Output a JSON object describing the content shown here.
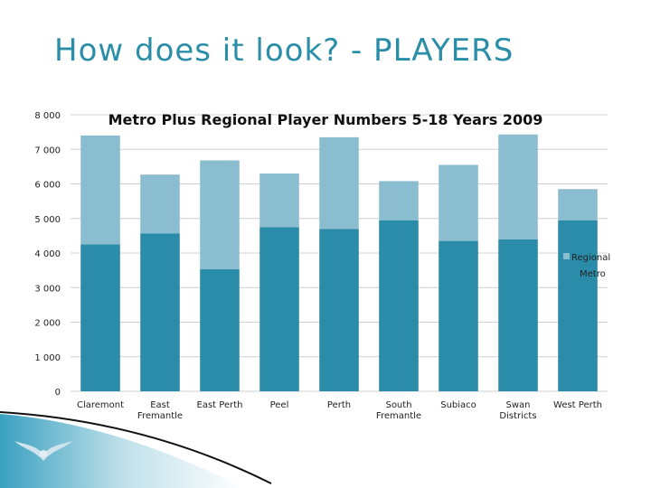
{
  "slide": {
    "title": "How does it look? - PLAYERS"
  },
  "colors": {
    "metro": "#2a8ca8",
    "regional": "#8bbdd0",
    "title": "#2b8ea8",
    "grid": "#d0d0d0"
  },
  "chart_data": {
    "type": "bar",
    "stacked": true,
    "title": "Metro Plus Regional Player Numbers 5-18 Years 2009",
    "xlabel": "",
    "ylabel": "",
    "ylim": [
      0,
      8000
    ],
    "yticks": [
      0,
      1000,
      2000,
      3000,
      4000,
      5000,
      6000,
      7000,
      8000
    ],
    "ytick_labels": [
      "0",
      "1 000",
      "2 000",
      "3 000",
      "4 000",
      "5 000",
      "6 000",
      "7 000",
      "8 000"
    ],
    "grid": true,
    "legend_position": "right",
    "categories": [
      [
        "Claremont"
      ],
      [
        "East",
        "Fremantle"
      ],
      [
        "East Perth"
      ],
      [
        "Peel"
      ],
      [
        "Perth"
      ],
      [
        "South",
        "Fremantle"
      ],
      [
        "Subiaco"
      ],
      [
        "Swan",
        "Districts"
      ],
      [
        "West Perth"
      ]
    ],
    "series": [
      {
        "name": "Metro",
        "values": [
          4250,
          4570,
          3530,
          4750,
          4700,
          4950,
          4350,
          4400,
          4950
        ]
      },
      {
        "name": "Regional",
        "values": [
          3150,
          1700,
          3150,
          1550,
          2650,
          1130,
          2200,
          3030,
          900
        ]
      }
    ]
  }
}
